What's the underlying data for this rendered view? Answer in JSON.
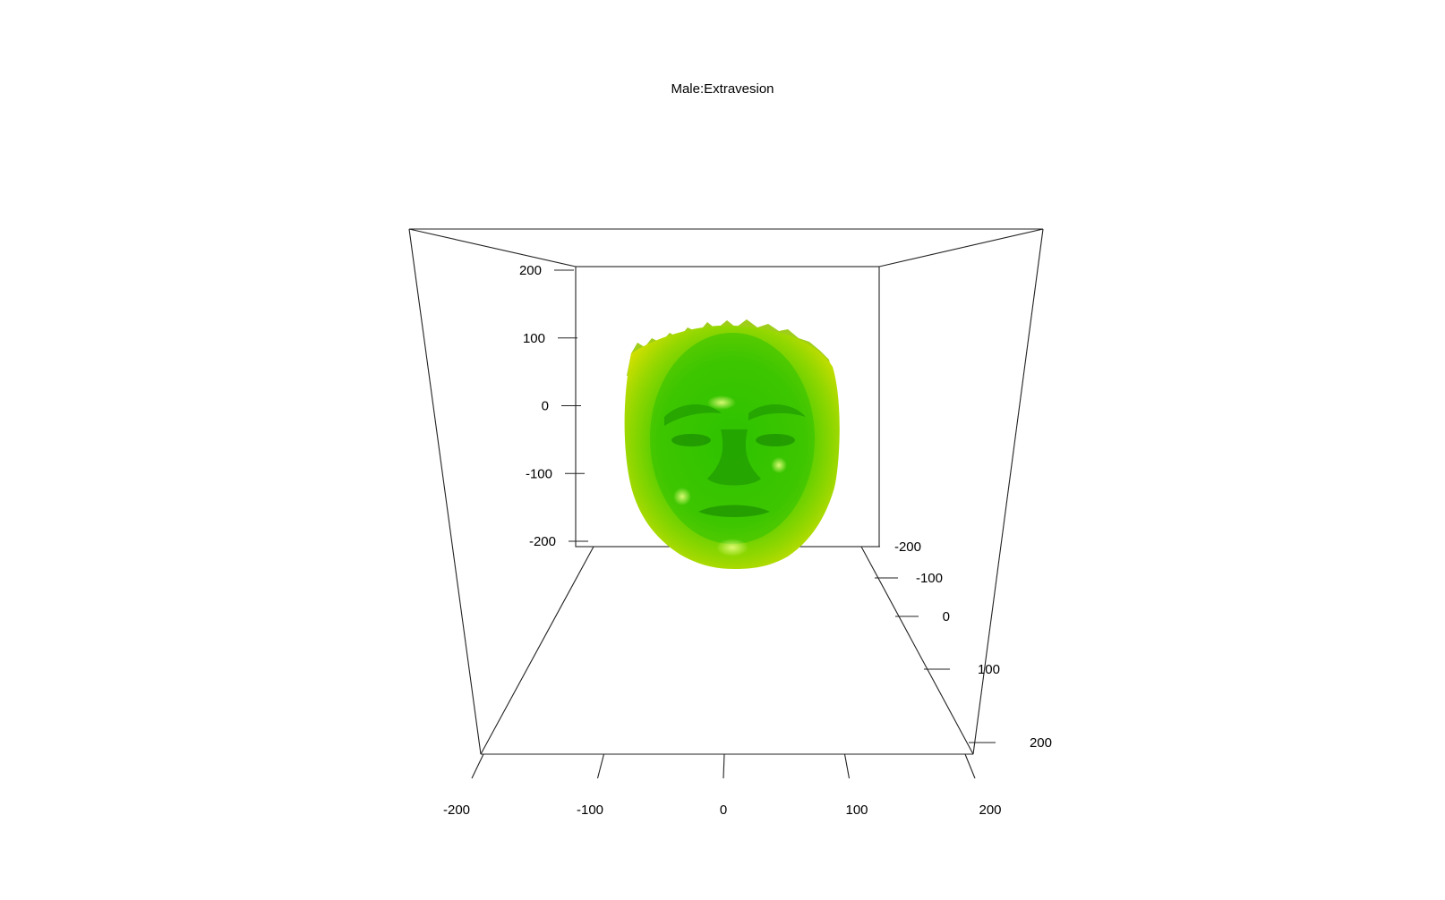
{
  "chart_data": {
    "type": "other",
    "title": "Male:Extravesion",
    "axes": {
      "x": {
        "ticks": [
          -200,
          -100,
          0,
          100,
          200
        ]
      },
      "y": {
        "ticks": [
          -200,
          -100,
          0,
          100,
          200
        ]
      },
      "z": {
        "ticks": [
          -200,
          -100,
          0,
          100,
          200
        ]
      }
    },
    "surface_colors": {
      "center": "#2ec400",
      "mid": "#6fd400",
      "edge": "#d8e000"
    }
  }
}
